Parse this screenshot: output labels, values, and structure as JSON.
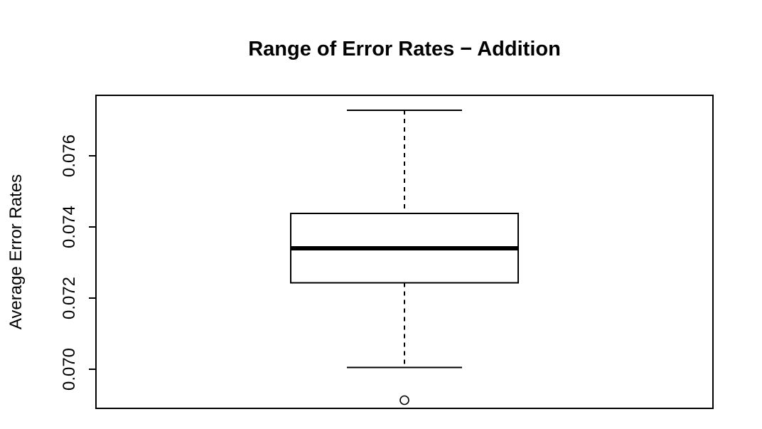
{
  "chart_data": {
    "type": "boxplot",
    "title": "Range of Error Rates − Addition",
    "xlabel": "",
    "ylabel": "Average Error Rates",
    "ylim": [
      0.0689,
      0.0777
    ],
    "yticks": [
      0.07,
      0.072,
      0.074,
      0.076
    ],
    "ytick_labels": [
      "0.070",
      "0.072",
      "0.074",
      "0.076"
    ],
    "box": {
      "whisker_low": 0.07005,
      "q1": 0.07243,
      "median": 0.0734,
      "q3": 0.07438,
      "whisker_high": 0.07728,
      "outliers": [
        0.06913
      ]
    },
    "grid": false,
    "legend": "none"
  }
}
